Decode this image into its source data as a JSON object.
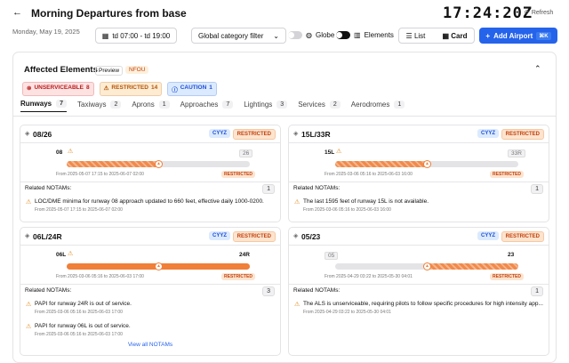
{
  "header": {
    "title": "Morning Departures from base",
    "clock": "17:24:20Z",
    "refresh": "Refresh"
  },
  "toolbar": {
    "date": "Monday, May 19, 2025",
    "time_range": "td 07:00 - td 19:00",
    "category_filter": "Global category filter",
    "globe": "Globe",
    "elements": "Elements",
    "list": "List",
    "card": "Card",
    "add_airport": "Add Airport",
    "shortcut": "⌘K"
  },
  "panel": {
    "title": "Affected Elements",
    "preview": "Preview",
    "airport": "NFOU",
    "badges": [
      {
        "label": "UNSERVICEABLE",
        "count": "8"
      },
      {
        "label": "RESTRICTED",
        "count": "14"
      },
      {
        "label": "CAUTION",
        "count": "1"
      }
    ],
    "tabs": [
      {
        "label": "Runways",
        "count": "7"
      },
      {
        "label": "Taxiways",
        "count": "2"
      },
      {
        "label": "Aprons",
        "count": "1"
      },
      {
        "label": "Approaches",
        "count": "7"
      },
      {
        "label": "Lightings",
        "count": "3"
      },
      {
        "label": "Services",
        "count": "2"
      },
      {
        "label": "Aerodromes",
        "count": "1"
      }
    ],
    "cards": [
      {
        "title": "08/26",
        "airport": "CYYZ",
        "status": "RESTRICTED",
        "left": "08",
        "right": "26",
        "bar_status": "RESTRICTED",
        "period": "From 2025-05-07 17:15 to 2025-06-07 02:00",
        "related": "Related NOTAMs:",
        "count": "1",
        "notams": [
          {
            "text": "LOC/DME minima for runway 08 approach updated to 660 feet, effective daily 1000-0200.",
            "period": "From 2025-05-07 17:15 to 2025-06-07 02:00"
          }
        ]
      },
      {
        "title": "15L/33R",
        "airport": "CYYZ",
        "status": "RESTRICTED",
        "left": "15L",
        "right": "33R",
        "bar_status": "RESTRICTED",
        "period": "From 2025-03-06 05:16 to 2025-06-03 16:00",
        "related": "Related NOTAMs:",
        "count": "1",
        "notams": [
          {
            "text": "The last 1595 feet of runway 15L is not available.",
            "period": "From 2025-03-06 05:16 to 2025-06-03 16:00"
          }
        ]
      },
      {
        "title": "06L/24R",
        "airport": "CYYZ",
        "status": "RESTRICTED",
        "left": "06L",
        "right": "24R",
        "bar_status": "RESTRICTED",
        "period": "From 2025-03-06 05:16 to 2025-06-03 17:00",
        "related": "Related NOTAMs:",
        "count": "3",
        "notams": [
          {
            "text": "PAPI for runway 24R is out of service.",
            "period": "From 2025-03-06 05:16 to 2025-06-03 17:00"
          },
          {
            "text": "PAPI for runway 06L is out of service.",
            "period": "From 2025-03-06 05:16 to 2025-06-03 17:00"
          }
        ],
        "view_all": "View all NOTAMs"
      },
      {
        "title": "05/23",
        "airport": "CYYZ",
        "status": "RESTRICTED",
        "left": "05",
        "right": "23",
        "bar_status": "RESTRICTED",
        "period": "From 2025-04-29 03:22 to 2025-05-30 04:01",
        "related": "Related NOTAMs:",
        "count": "1",
        "notams": [
          {
            "text": "The ALS is unserviceable, requiring pilots to follow specific procedures for high intensity app...",
            "period": "From 2025-04-29 03:22 to 2025-05-30 04:01"
          }
        ]
      }
    ]
  }
}
